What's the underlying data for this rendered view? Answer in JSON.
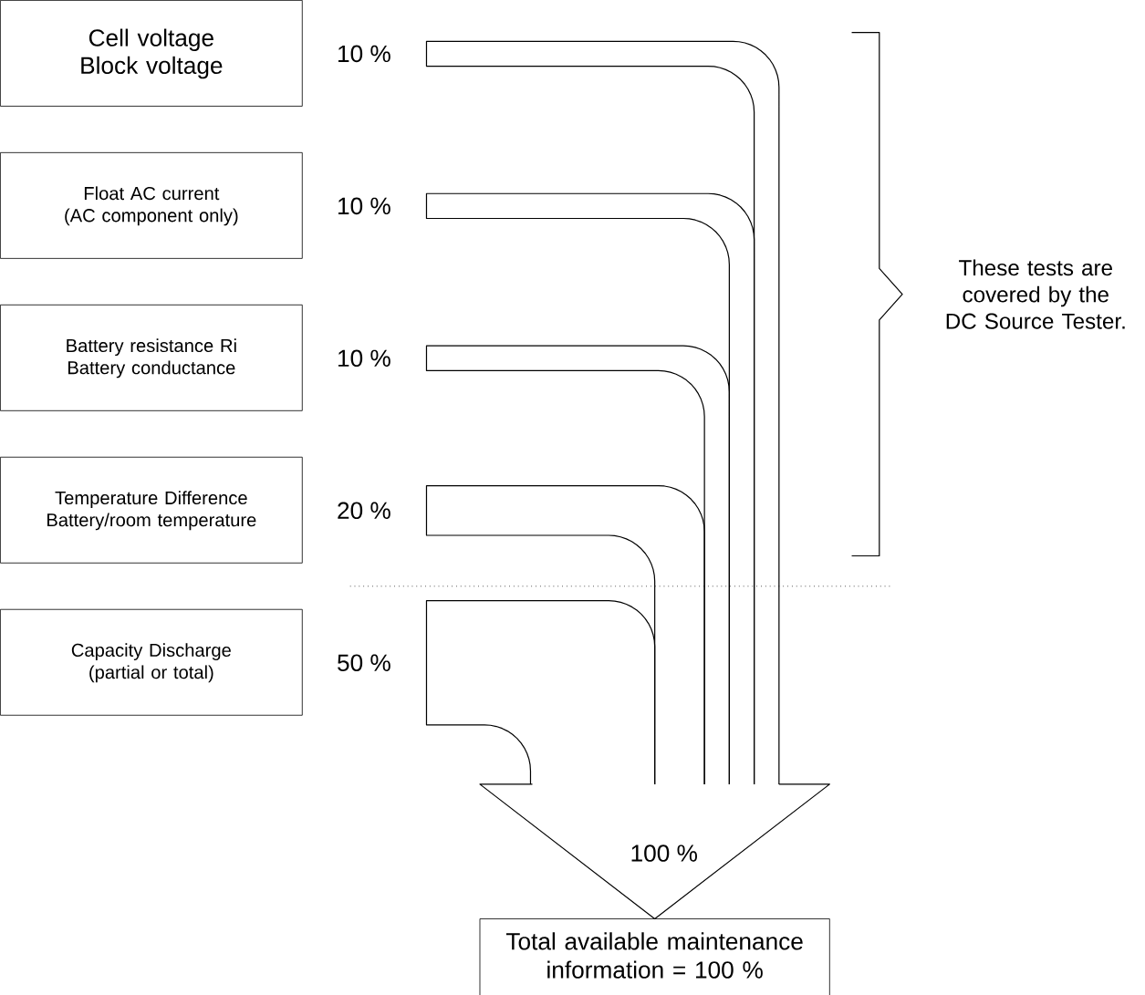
{
  "chart_data": {
    "type": "other",
    "categories": [
      "Cell voltage\nBlock voltage",
      "Float AC current\n(AC component only)",
      "Battery resistance Ri\nBattery conductance",
      "Temperature Difference\nBattery/room temperature",
      "Capacity Discharge\n(partial or total)"
    ],
    "values": [
      10,
      10,
      10,
      20,
      50
    ],
    "value_labels": [
      "10 %",
      "10 %",
      "10 %",
      "20 %",
      "50 %"
    ],
    "annotations": [
      "These tests are covered by the DC Source Tester.",
      "100 %",
      "Total available maintenance information = 100 %"
    ]
  }
}
